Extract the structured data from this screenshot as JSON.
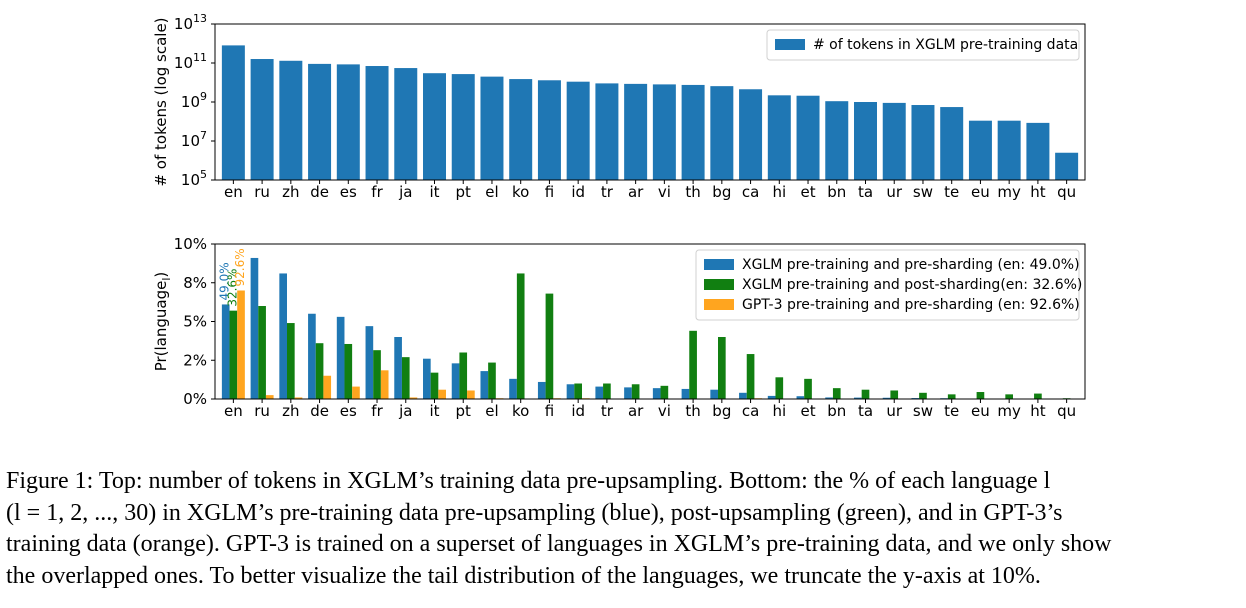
{
  "chart_data": [
    {
      "type": "bar",
      "ylabel": "# of tokens (log scale)",
      "yscale": "log",
      "ylim": [
        100000,
        10000000000000
      ],
      "ytick_labels": [
        {
          "base": "10",
          "exp": "5"
        },
        {
          "base": "10",
          "exp": "7"
        },
        {
          "base": "10",
          "exp": "9"
        },
        {
          "base": "10",
          "exp": "11"
        },
        {
          "base": "10",
          "exp": "13"
        }
      ],
      "categories": [
        "en",
        "ru",
        "zh",
        "de",
        "es",
        "fr",
        "ja",
        "it",
        "pt",
        "el",
        "ko",
        "fi",
        "id",
        "tr",
        "ar",
        "vi",
        "th",
        "bg",
        "ca",
        "hi",
        "et",
        "bn",
        "ta",
        "ur",
        "sw",
        "te",
        "eu",
        "my",
        "ht",
        "qu"
      ],
      "series": [
        {
          "name": "# of tokens in XGLM pre-training data",
          "color": "#1f77b4",
          "values": [
            800000000000.0,
            160000000000.0,
            130000000000.0,
            90000000000.0,
            85000000000.0,
            70000000000.0,
            55000000000.0,
            30000000000.0,
            27000000000.0,
            20000000000.0,
            15000000000.0,
            13000000000.0,
            11000000000.0,
            9000000000.0,
            8500000000.0,
            8000000000.0,
            7500000000.0,
            6500000000.0,
            4500000000.0,
            2200000000.0,
            2100000000.0,
            1100000000.0,
            1000000000.0,
            900000000.0,
            700000000.0,
            550000000.0,
            110000000.0,
            110000000.0,
            85000000.0,
            2500000.0
          ]
        }
      ],
      "legend": "upper-right",
      "grid": false
    },
    {
      "type": "bar",
      "ylabel": "Pr(language)",
      "ylabel_sub": "l",
      "ylim": [
        0,
        10
      ],
      "yticks": [
        0,
        2.5,
        5,
        7.5,
        10
      ],
      "ytick_labels": [
        "0%",
        "2%",
        "5%",
        "8%",
        "10%"
      ],
      "categories": [
        "en",
        "ru",
        "zh",
        "de",
        "es",
        "fr",
        "ja",
        "it",
        "pt",
        "el",
        "ko",
        "fi",
        "id",
        "tr",
        "ar",
        "vi",
        "th",
        "bg",
        "ca",
        "hi",
        "et",
        "bn",
        "ta",
        "ur",
        "sw",
        "te",
        "eu",
        "my",
        "ht",
        "qu"
      ],
      "series": [
        {
          "name": "XGLM pre-training and pre-sharding (en: 49.0%)",
          "color": "#1f77b4",
          "values": [
            6.1,
            9.1,
            8.1,
            5.5,
            5.3,
            4.7,
            4.0,
            2.6,
            2.3,
            1.8,
            1.3,
            1.1,
            0.95,
            0.8,
            0.75,
            0.7,
            0.65,
            0.6,
            0.4,
            0.2,
            0.18,
            0.1,
            0.09,
            0.08,
            0.06,
            0.05,
            0.01,
            0.01,
            0.01,
            0.0
          ]
        },
        {
          "name": "XGLM pre-training and post-sharding(en: 32.6%)",
          "color": "#117f11",
          "values": [
            5.7,
            6.0,
            4.9,
            3.6,
            3.55,
            3.15,
            2.7,
            1.7,
            3.0,
            2.35,
            8.1,
            6.8,
            1.0,
            1.0,
            0.95,
            0.85,
            4.4,
            4.0,
            2.9,
            1.4,
            1.3,
            0.7,
            0.6,
            0.55,
            0.4,
            0.3,
            0.45,
            0.3,
            0.35,
            0.05
          ]
        },
        {
          "name": "GPT-3 pre-training and pre-sharding (en: 92.6%)",
          "color": "#ffa51f",
          "values": [
            7.0,
            0.25,
            0.1,
            1.5,
            0.8,
            1.85,
            0.1,
            0.6,
            0.55,
            0.05,
            0.02,
            0.05,
            0.05,
            0.03,
            0.02,
            0.02,
            0.02,
            0.02,
            0.05,
            0.01,
            0.01,
            0.0,
            0.0,
            0.0,
            0.0,
            0.0,
            0.0,
            0.0,
            0.0,
            0.0
          ]
        }
      ],
      "annotations": [
        {
          "text": "49.0%",
          "series": 0,
          "category": "en"
        },
        {
          "text": "32.6%",
          "series": 1,
          "category": "en"
        },
        {
          "text": "92.6%",
          "series": 2,
          "category": "en"
        }
      ],
      "legend": "upper-right",
      "grid": false
    }
  ],
  "caption": {
    "lines": [
      "Figure 1: Top: number of tokens in XGLM’s training data pre-upsampling. Bottom: the % of each language l",
      "(l = 1, 2, ..., 30) in XGLM’s pre-training data pre-upsampling (blue), post-upsampling (green), and in GPT-3’s",
      "training data (orange). GPT-3 is trained on a superset of languages in XGLM’s pre-training data, and we only show",
      "the overlapped ones. To better visualize the tail distribution of the languages, we truncate the y-axis at 10%."
    ]
  }
}
